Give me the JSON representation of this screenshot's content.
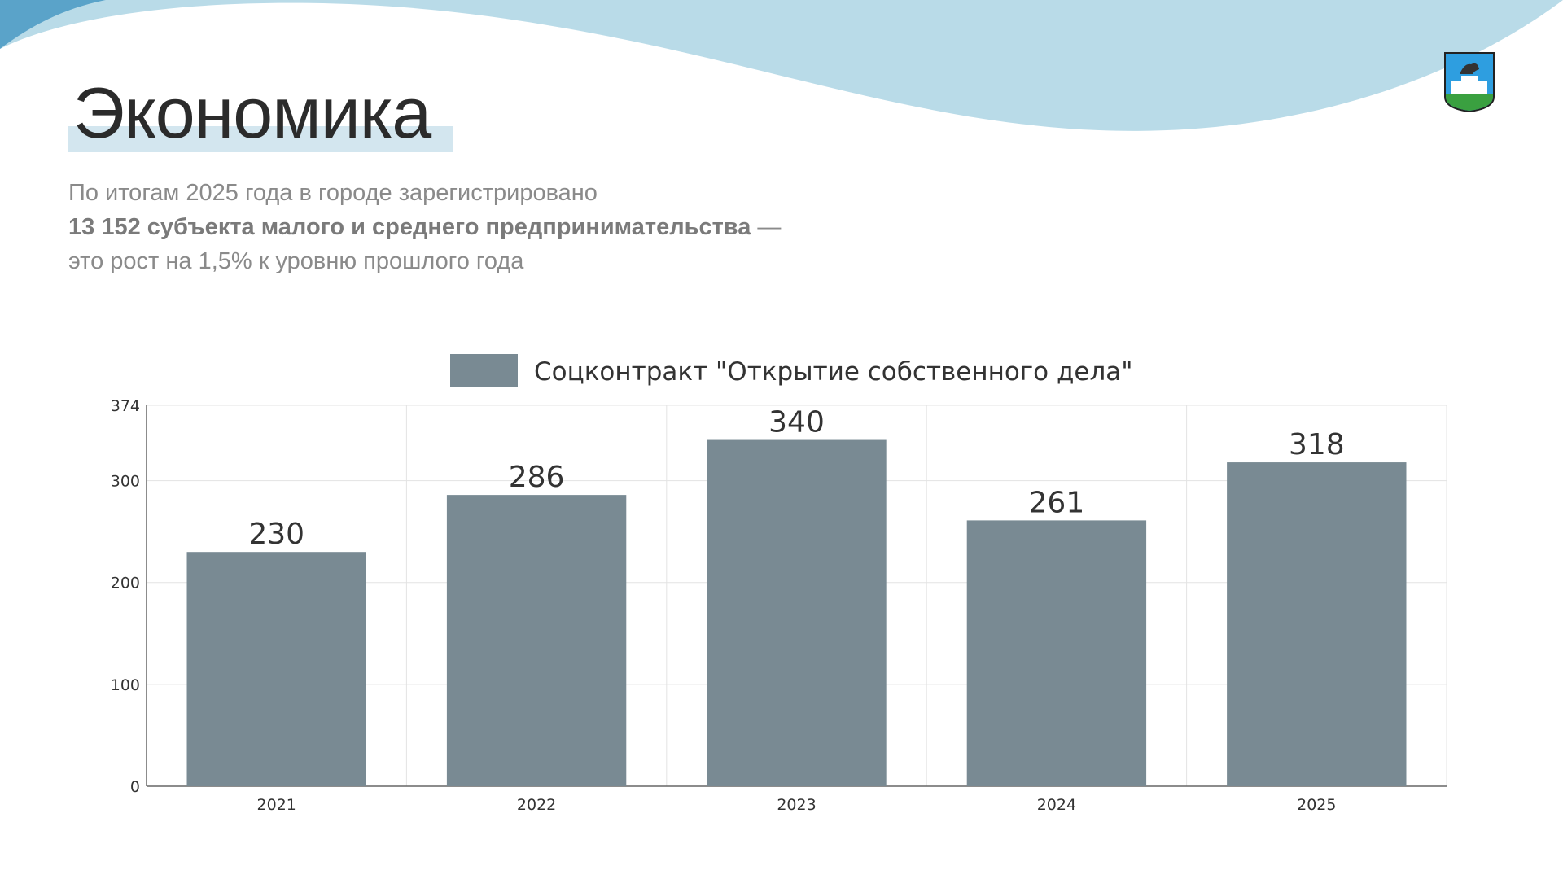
{
  "header": {
    "title": "Экономика",
    "paragraph": {
      "line1": "По итогам 2025 года в городе зарегистрировано",
      "line2_bold": "13 152 субъекта малого и среднего предпринимательства",
      "line2_rest": " —",
      "line3": "это рост на 1,5% к уровню прошлого года"
    },
    "logo": "Герб города"
  },
  "colors": {
    "bar": "#798a93",
    "wave": "#b9dbe8",
    "highlight": "#d3e6ef"
  },
  "chart_data": {
    "type": "bar",
    "categories": [
      "2021",
      "2022",
      "2023",
      "2024",
      "2025"
    ],
    "series": [
      {
        "name": "Соцконтракт \"Открытие собственного дела\"",
        "values": [
          230,
          286,
          340,
          261,
          318
        ]
      }
    ],
    "ylim": [
      0,
      374
    ],
    "yticks": [
      "0",
      "100",
      "200",
      "300",
      "374"
    ],
    "grid": true,
    "legend": "top"
  }
}
